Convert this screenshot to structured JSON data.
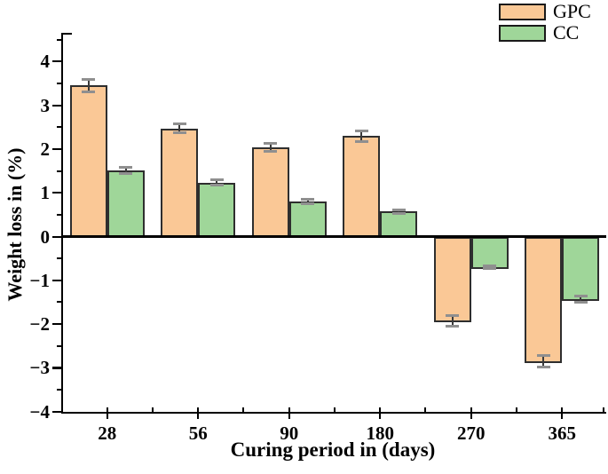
{
  "chart_data": {
    "type": "bar",
    "title": "",
    "categories": [
      "28",
      "56",
      "90",
      "180",
      "270",
      "365"
    ],
    "series": [
      {
        "name": "GPC",
        "color": "#fac896",
        "values": [
          3.45,
          2.47,
          2.03,
          2.3,
          -1.92,
          -2.85
        ],
        "errors": [
          0.15,
          0.1,
          0.09,
          0.12,
          0.12,
          0.14
        ]
      },
      {
        "name": "CC",
        "color": "#9fd699",
        "values": [
          1.52,
          1.23,
          0.8,
          0.57,
          -0.7,
          -1.43
        ],
        "errors": [
          0.07,
          0.06,
          0.05,
          0.04,
          0.04,
          0.07
        ]
      }
    ],
    "xlabel": "Curing period in (days)",
    "ylabel": "Weight loss in (%)",
    "ylim": [
      -4,
      4.6
    ],
    "y_major_ticks": [
      4,
      3,
      2,
      1,
      0,
      -1,
      -2,
      -3,
      -4
    ],
    "y_minor_ticks": [
      4.5,
      3.5,
      2.5,
      1.5,
      0.5,
      -0.5,
      -1.5,
      -2.5,
      -3.5
    ],
    "grid": false,
    "legend_position": "top-right",
    "bar_edge_color": "#2e2e2e",
    "error_stem_color": "#3a3a3a",
    "error_cap_color": "#8f8f8f",
    "zero_line": true
  }
}
